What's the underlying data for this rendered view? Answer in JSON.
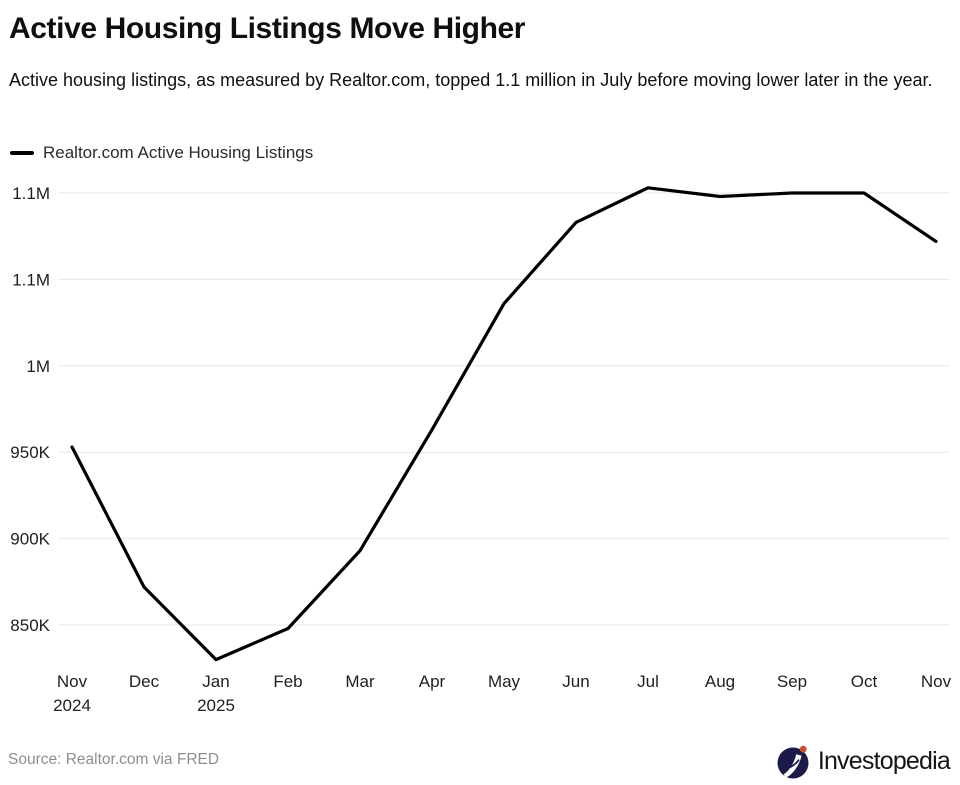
{
  "header": {
    "title": "Active Housing Listings Move Higher",
    "subtitle": "Active housing listings, as measured by Realtor.com, topped 1.1 million in July before moving lower later in the year."
  },
  "legend": {
    "label": "Realtor.com Active Housing Listings",
    "swatch_color": "#000000"
  },
  "chart_data": {
    "type": "line",
    "title": "Active Housing Listings Move Higher",
    "categories": [
      "Nov",
      "Dec",
      "Jan",
      "Feb",
      "Mar",
      "Apr",
      "May",
      "Jun",
      "Jul",
      "Aug",
      "Sep",
      "Oct",
      "Nov"
    ],
    "category_sublabels": {
      "0": "2024",
      "2": "2025"
    },
    "series": [
      {
        "name": "Realtor.com Active Housing Listings",
        "color": "#000000",
        "values": [
          953000,
          872000,
          830000,
          848000,
          893000,
          963000,
          1036000,
          1083000,
          1103000,
          1098000,
          1100000,
          1100000,
          1072000
        ]
      }
    ],
    "y_ticks": [
      {
        "value": 1100000,
        "label": "1.1M"
      },
      {
        "value": 1050000,
        "label": "1.1M"
      },
      {
        "value": 1000000,
        "label": "1M"
      },
      {
        "value": 950000,
        "label": "950K"
      },
      {
        "value": 900000,
        "label": "900K"
      },
      {
        "value": 850000,
        "label": "850K"
      }
    ],
    "ylim": [
      828000,
      1110000
    ],
    "xlabel": "",
    "ylabel": "",
    "grid": true,
    "legend_position": "top-left"
  },
  "footer": {
    "source": "Source: Realtor.com via FRED",
    "brand": "Investopedia",
    "brand_colors": {
      "circle": "#1b1a4a",
      "dot": "#c2532c",
      "mark": "#ffffff"
    }
  }
}
